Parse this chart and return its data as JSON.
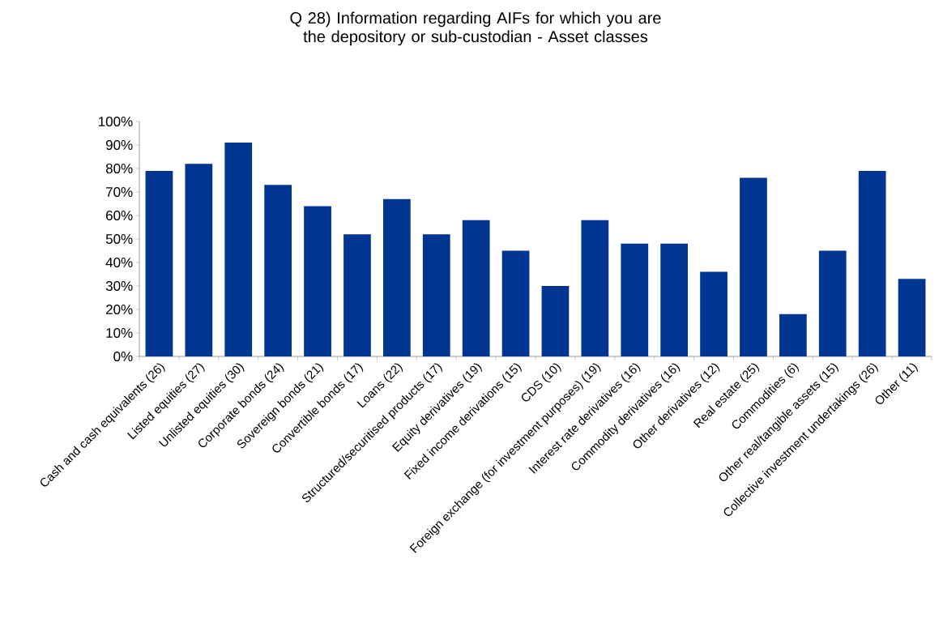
{
  "chart_data": {
    "type": "bar",
    "title": "Q 28) Information regarding AIFs for which you are the depository or sub-custodian - Asset classes",
    "categories": [
      "Cash and cash equivalents (26)",
      "Listed equities (27)",
      "Unlisted equities (30)",
      "Corporate bonds (24)",
      "Sovereign bonds (21)",
      "Convertible bonds (17)",
      "Loans (22)",
      "Structured/securitised products (17)",
      "Equity derivatives (19)",
      "Fixed income derivations (15)",
      "CDS (10)",
      "Foreign exchange (for investment purposes) (19)",
      "Interest rate derivatives (16)",
      "Commodity derivatives (16)",
      "Other derivatives (12)",
      "Real estate (25)",
      "Commodities (6)",
      "Other real/tangible assets (15)",
      "Collective investment undertakings (26)",
      "Other (11)"
    ],
    "values": [
      79,
      82,
      91,
      73,
      64,
      52,
      67,
      52,
      58,
      45,
      30,
      58,
      48,
      48,
      36,
      76,
      18,
      45,
      79,
      33
    ],
    "color": "#003591",
    "ylim": [
      0,
      100
    ],
    "yticks": [
      {
        "value": 0,
        "label": "0%"
      },
      {
        "value": 10,
        "label": "10%"
      },
      {
        "value": 20,
        "label": "20%"
      },
      {
        "value": 30,
        "label": "30%"
      },
      {
        "value": 40,
        "label": "40%"
      },
      {
        "value": 50,
        "label": "50%"
      },
      {
        "value": 60,
        "label": "60%"
      },
      {
        "value": 70,
        "label": "70%"
      },
      {
        "value": 80,
        "label": "80%"
      },
      {
        "value": 90,
        "label": "90%"
      },
      {
        "value": 100,
        "label": "100%"
      }
    ]
  }
}
